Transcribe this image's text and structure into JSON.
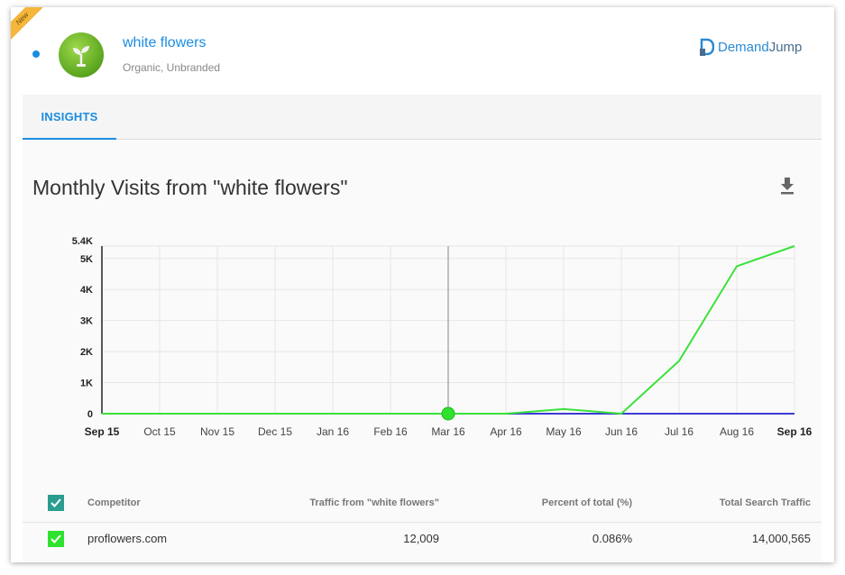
{
  "badge": {
    "new_label": "New"
  },
  "keyword": {
    "title": "white flowers",
    "subtitle": "Organic, Unbranded"
  },
  "brand": {
    "name_a": "Demand",
    "name_b": "Jump"
  },
  "tabs": [
    {
      "label": "INSIGHTS",
      "active": true
    }
  ],
  "chart_title": "Monthly Visits from \"white flowers\"",
  "chart_data": {
    "type": "line",
    "categories": [
      "Sep 15",
      "Oct 15",
      "Nov 15",
      "Dec 15",
      "Jan 16",
      "Feb 16",
      "Mar 16",
      "Apr 16",
      "May 16",
      "Jun 16",
      "Jul 16",
      "Aug 16",
      "Sep 16"
    ],
    "y_ticks": [
      "0",
      "1K",
      "2K",
      "3K",
      "4K",
      "5K",
      "5.4K"
    ],
    "ylim": [
      0,
      5400
    ],
    "highlighted_category": "Mar 16",
    "series": [
      {
        "values": [
          0,
          0,
          0,
          0,
          0,
          0,
          0,
          0,
          150,
          0,
          1700,
          4750,
          5400
        ],
        "color": "#39e23a"
      },
      {
        "values": [
          0,
          0,
          0,
          0,
          0,
          0,
          0,
          0,
          0,
          0,
          0,
          0,
          0
        ],
        "color": "#3b3bd6"
      }
    ]
  },
  "table": {
    "headers": [
      "Competitor",
      "Traffic from \"white flowers\"",
      "Percent of total (%)",
      "Total Search Traffic"
    ],
    "rows": [
      {
        "competitor": "proflowers.com",
        "traffic": "12,009",
        "percent": "0.086%",
        "total": "14,000,565"
      }
    ]
  }
}
